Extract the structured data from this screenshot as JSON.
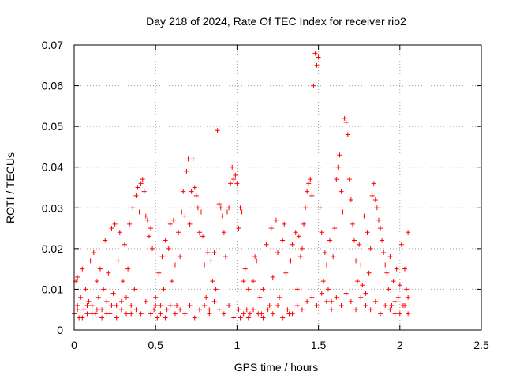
{
  "chart_data": {
    "type": "scatter",
    "title": "Day 218 of 2024, Rate Of TEC Index for receiver rio2",
    "xlabel": "GPS time / hours",
    "ylabel": "ROTI / TECUs",
    "xlim": [
      0,
      2.5
    ],
    "ylim": [
      0,
      0.07
    ],
    "xticks": [
      "0",
      "0.5",
      "1",
      "1.5",
      "2",
      "2.5"
    ],
    "yticks": [
      "0",
      "0.01",
      "0.02",
      "0.03",
      "0.04",
      "0.05",
      "0.06",
      "0.07"
    ],
    "grid": true,
    "marker": "plus",
    "color": "#ff0000",
    "series": [
      {
        "points": [
          [
            0.0,
            0.004
          ],
          [
            0.01,
            0.012
          ],
          [
            0.02,
            0.006
          ],
          [
            0.02,
            0.013
          ],
          [
            0.03,
            0.003
          ],
          [
            0.04,
            0.008
          ],
          [
            0.05,
            0.015
          ],
          [
            0.06,
            0.005
          ],
          [
            0.07,
            0.01
          ],
          [
            0.08,
            0.004
          ],
          [
            0.09,
            0.007
          ],
          [
            0.1,
            0.017
          ],
          [
            0.11,
            0.006
          ],
          [
            0.12,
            0.019
          ],
          [
            0.13,
            0.004
          ],
          [
            0.14,
            0.012
          ],
          [
            0.15,
            0.008
          ],
          [
            0.16,
            0.015
          ],
          [
            0.17,
            0.005
          ],
          [
            0.18,
            0.01
          ],
          [
            0.19,
            0.022
          ],
          [
            0.2,
            0.007
          ],
          [
            0.21,
            0.014
          ],
          [
            0.22,
            0.004
          ],
          [
            0.23,
            0.025
          ],
          [
            0.24,
            0.009
          ],
          [
            0.25,
            0.026
          ],
          [
            0.26,
            0.006
          ],
          [
            0.27,
            0.017
          ],
          [
            0.28,
            0.024
          ],
          [
            0.29,
            0.005
          ],
          [
            0.3,
            0.012
          ],
          [
            0.31,
            0.021
          ],
          [
            0.32,
            0.008
          ],
          [
            0.33,
            0.015
          ],
          [
            0.34,
            0.026
          ],
          [
            0.35,
            0.004
          ],
          [
            0.36,
            0.03
          ],
          [
            0.37,
            0.01
          ],
          [
            0.38,
            0.033
          ],
          [
            0.39,
            0.035
          ],
          [
            0.4,
            0.029
          ],
          [
            0.41,
            0.036
          ],
          [
            0.42,
            0.037
          ],
          [
            0.43,
            0.034
          ],
          [
            0.44,
            0.028
          ],
          [
            0.45,
            0.027
          ],
          [
            0.46,
            0.023
          ],
          [
            0.47,
            0.025
          ],
          [
            0.48,
            0.02
          ],
          [
            0.49,
            0.005
          ],
          [
            0.5,
            0.008
          ],
          [
            0.51,
            0.003
          ],
          [
            0.52,
            0.014
          ],
          [
            0.53,
            0.006
          ],
          [
            0.54,
            0.018
          ],
          [
            0.55,
            0.01
          ],
          [
            0.56,
            0.022
          ],
          [
            0.57,
            0.005
          ],
          [
            0.58,
            0.02
          ],
          [
            0.59,
            0.026
          ],
          [
            0.6,
            0.012
          ],
          [
            0.61,
            0.027
          ],
          [
            0.62,
            0.016
          ],
          [
            0.63,
            0.006
          ],
          [
            0.64,
            0.024
          ],
          [
            0.65,
            0.018
          ],
          [
            0.66,
            0.029
          ],
          [
            0.67,
            0.034
          ],
          [
            0.68,
            0.028
          ],
          [
            0.69,
            0.039
          ],
          [
            0.7,
            0.042
          ],
          [
            0.71,
            0.026
          ],
          [
            0.72,
            0.034
          ],
          [
            0.73,
            0.042
          ],
          [
            0.74,
            0.035
          ],
          [
            0.75,
            0.033
          ],
          [
            0.76,
            0.03
          ],
          [
            0.77,
            0.024
          ],
          [
            0.78,
            0.029
          ],
          [
            0.79,
            0.023
          ],
          [
            0.8,
            0.016
          ],
          [
            0.81,
            0.008
          ],
          [
            0.82,
            0.019
          ],
          [
            0.83,
            0.005
          ],
          [
            0.84,
            0.017
          ],
          [
            0.85,
            0.012
          ],
          [
            0.86,
            0.019
          ],
          [
            0.87,
            0.01
          ],
          [
            0.88,
            0.049
          ],
          [
            0.89,
            0.031
          ],
          [
            0.9,
            0.03
          ],
          [
            0.91,
            0.028
          ],
          [
            0.92,
            0.024
          ],
          [
            0.93,
            0.018
          ],
          [
            0.94,
            0.029
          ],
          [
            0.95,
            0.03
          ],
          [
            0.96,
            0.036
          ],
          [
            0.97,
            0.04
          ],
          [
            0.98,
            0.037
          ],
          [
            0.99,
            0.038
          ],
          [
            1.0,
            0.036
          ],
          [
            1.01,
            0.025
          ],
          [
            1.02,
            0.03
          ],
          [
            1.03,
            0.029
          ],
          [
            1.04,
            0.012
          ],
          [
            1.05,
            0.015
          ],
          [
            1.06,
            0.005
          ],
          [
            1.07,
            0.01
          ],
          [
            1.08,
            0.004
          ],
          [
            1.1,
            0.012
          ],
          [
            1.11,
            0.018
          ],
          [
            1.12,
            0.017
          ],
          [
            1.14,
            0.008
          ],
          [
            1.15,
            0.004
          ],
          [
            1.16,
            0.01
          ],
          [
            1.18,
            0.021
          ],
          [
            1.2,
            0.006
          ],
          [
            1.21,
            0.025
          ],
          [
            1.22,
            0.013
          ],
          [
            1.24,
            0.027
          ],
          [
            1.25,
            0.019
          ],
          [
            1.26,
            0.008
          ],
          [
            1.28,
            0.022
          ],
          [
            1.29,
            0.026
          ],
          [
            1.3,
            0.014
          ],
          [
            1.32,
            0.004
          ],
          [
            1.33,
            0.017
          ],
          [
            1.34,
            0.021
          ],
          [
            1.36,
            0.024
          ],
          [
            1.37,
            0.01
          ],
          [
            1.38,
            0.023
          ],
          [
            1.39,
            0.018
          ],
          [
            1.4,
            0.02
          ],
          [
            1.41,
            0.026
          ],
          [
            1.42,
            0.03
          ],
          [
            1.43,
            0.034
          ],
          [
            1.44,
            0.036
          ],
          [
            1.45,
            0.037
          ],
          [
            1.46,
            0.033
          ],
          [
            1.47,
            0.06
          ],
          [
            1.48,
            0.068
          ],
          [
            1.49,
            0.065
          ],
          [
            1.5,
            0.067
          ],
          [
            1.51,
            0.03
          ],
          [
            1.52,
            0.024
          ],
          [
            1.53,
            0.012
          ],
          [
            1.54,
            0.019
          ],
          [
            1.55,
            0.016
          ],
          [
            1.56,
            0.01
          ],
          [
            1.57,
            0.022
          ],
          [
            1.58,
            0.007
          ],
          [
            1.59,
            0.018
          ],
          [
            1.6,
            0.025
          ],
          [
            1.61,
            0.037
          ],
          [
            1.62,
            0.04
          ],
          [
            1.63,
            0.043
          ],
          [
            1.64,
            0.034
          ],
          [
            1.65,
            0.029
          ],
          [
            1.66,
            0.052
          ],
          [
            1.67,
            0.051
          ],
          [
            1.68,
            0.048
          ],
          [
            1.69,
            0.037
          ],
          [
            1.7,
            0.032
          ],
          [
            1.71,
            0.026
          ],
          [
            1.72,
            0.022
          ],
          [
            1.73,
            0.017
          ],
          [
            1.74,
            0.012
          ],
          [
            1.75,
            0.021
          ],
          [
            1.76,
            0.016
          ],
          [
            1.77,
            0.011
          ],
          [
            1.78,
            0.028
          ],
          [
            1.79,
            0.009
          ],
          [
            1.8,
            0.024
          ],
          [
            1.81,
            0.014
          ],
          [
            1.82,
            0.02
          ],
          [
            1.83,
            0.033
          ],
          [
            1.84,
            0.036
          ],
          [
            1.85,
            0.032
          ],
          [
            1.86,
            0.03
          ],
          [
            1.87,
            0.027
          ],
          [
            1.88,
            0.025
          ],
          [
            1.89,
            0.022
          ],
          [
            1.9,
            0.019
          ],
          [
            1.91,
            0.016
          ],
          [
            1.92,
            0.014
          ],
          [
            1.93,
            0.01
          ],
          [
            1.94,
            0.018
          ],
          [
            1.95,
            0.006
          ],
          [
            1.96,
            0.012
          ],
          [
            1.97,
            0.004
          ],
          [
            1.98,
            0.015
          ],
          [
            1.99,
            0.008
          ],
          [
            2.0,
            0.011
          ],
          [
            2.01,
            0.021
          ],
          [
            2.02,
            0.006
          ],
          [
            2.03,
            0.015
          ],
          [
            2.04,
            0.01
          ],
          [
            2.05,
            0.024
          ],
          [
            2.05,
            0.004
          ],
          [
            0.02,
            0.005
          ],
          [
            0.05,
            0.003
          ],
          [
            0.08,
            0.006
          ],
          [
            0.11,
            0.004
          ],
          [
            0.14,
            0.005
          ],
          [
            0.17,
            0.003
          ],
          [
            0.2,
            0.004
          ],
          [
            0.23,
            0.006
          ],
          [
            0.26,
            0.003
          ],
          [
            0.29,
            0.007
          ],
          [
            0.32,
            0.004
          ],
          [
            0.35,
            0.006
          ],
          [
            0.38,
            0.005
          ],
          [
            0.41,
            0.004
          ],
          [
            0.44,
            0.007
          ],
          [
            0.47,
            0.004
          ],
          [
            0.5,
            0.006
          ],
          [
            0.53,
            0.004
          ],
          [
            0.56,
            0.003
          ],
          [
            0.59,
            0.006
          ],
          [
            0.62,
            0.004
          ],
          [
            0.65,
            0.005
          ],
          [
            0.68,
            0.004
          ],
          [
            0.71,
            0.006
          ],
          [
            0.74,
            0.003
          ],
          [
            0.77,
            0.005
          ],
          [
            0.8,
            0.006
          ],
          [
            0.83,
            0.004
          ],
          [
            0.86,
            0.007
          ],
          [
            0.89,
            0.005
          ],
          [
            0.92,
            0.004
          ],
          [
            0.95,
            0.006
          ],
          [
            0.98,
            0.003
          ],
          [
            1.01,
            0.005
          ],
          [
            1.04,
            0.004
          ],
          [
            1.07,
            0.003
          ],
          [
            1.1,
            0.005
          ],
          [
            1.13,
            0.004
          ],
          [
            1.16,
            0.003
          ],
          [
            1.19,
            0.005
          ],
          [
            1.22,
            0.004
          ],
          [
            1.25,
            0.006
          ],
          [
            1.28,
            0.003
          ],
          [
            1.31,
            0.005
          ],
          [
            1.34,
            0.004
          ],
          [
            1.37,
            0.006
          ],
          [
            1.4,
            0.005
          ],
          [
            1.43,
            0.007
          ],
          [
            1.46,
            0.008
          ],
          [
            1.49,
            0.006
          ],
          [
            1.52,
            0.009
          ],
          [
            1.55,
            0.007
          ],
          [
            1.58,
            0.005
          ],
          [
            1.61,
            0.008
          ],
          [
            1.64,
            0.006
          ],
          [
            1.67,
            0.009
          ],
          [
            1.7,
            0.007
          ],
          [
            1.73,
            0.005
          ],
          [
            1.76,
            0.008
          ],
          [
            1.79,
            0.006
          ],
          [
            1.82,
            0.005
          ],
          [
            1.85,
            0.007
          ],
          [
            1.88,
            0.004
          ],
          [
            1.91,
            0.006
          ],
          [
            1.94,
            0.005
          ],
          [
            1.97,
            0.007
          ],
          [
            2.0,
            0.004
          ],
          [
            2.03,
            0.006
          ],
          [
            2.05,
            0.008
          ],
          [
            1.02,
            0.003
          ]
        ]
      }
    ]
  }
}
